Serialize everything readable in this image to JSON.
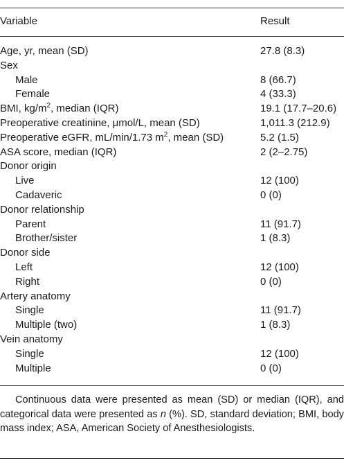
{
  "header": {
    "variable": "Variable",
    "result": "Result"
  },
  "rows": [
    {
      "label": "Age, yr, mean (SD)",
      "value": "27.8 (8.3)",
      "indent": false
    },
    {
      "label": "Sex",
      "value": "",
      "indent": false
    },
    {
      "label": "Male",
      "value": "8 (66.7)",
      "indent": true
    },
    {
      "label": "Female",
      "value": "4 (33.3)",
      "indent": true
    },
    {
      "label_pre": "BMI, kg/m",
      "label_sup": "2",
      "label_post": ", median (IQR)",
      "value": "19.1 (17.7–20.6)",
      "indent": false
    },
    {
      "label": "Preoperative creatinine, μmol/L, mean (SD)",
      "value": "1,011.3 (212.9)",
      "indent": false
    },
    {
      "label_pre": "Preoperative eGFR, mL/min/1.73 m",
      "label_sup": "2",
      "label_post": ", mean (SD)",
      "value": "5.2 (1.5)",
      "indent": false
    },
    {
      "label": "ASA score, median (IQR)",
      "value": "2 (2–2.75)",
      "indent": false
    },
    {
      "label": "Donor origin",
      "value": "",
      "indent": false
    },
    {
      "label": "Live",
      "value": "12 (100)",
      "indent": true
    },
    {
      "label": "Cadaveric",
      "value": "0 (0)",
      "indent": true
    },
    {
      "label": "Donor relationship",
      "value": "",
      "indent": false
    },
    {
      "label": "Parent",
      "value": "11 (91.7)",
      "indent": true
    },
    {
      "label": "Brother/sister",
      "value": "1 (8.3)",
      "indent": true
    },
    {
      "label": "Donor side",
      "value": "",
      "indent": false
    },
    {
      "label": "Left",
      "value": "12 (100)",
      "indent": true
    },
    {
      "label": "Right",
      "value": "0 (0)",
      "indent": true
    },
    {
      "label": "Artery anatomy",
      "value": "",
      "indent": false
    },
    {
      "label": "Single",
      "value": "11 (91.7)",
      "indent": true
    },
    {
      "label": "Multiple (two)",
      "value": "1 (8.3)",
      "indent": true
    },
    {
      "label": "Vein anatomy",
      "value": "",
      "indent": false
    },
    {
      "label": "Single",
      "value": "12 (100)",
      "indent": true
    },
    {
      "label": "Multiple",
      "value": "0 (0)",
      "indent": true
    }
  ],
  "footnote": {
    "part1": "Continuous data were presented as mean (SD) or median (IQR), and categorical data were presented as ",
    "italic": "n",
    "part2": " (%). SD, standard deviation; BMI, body mass index; ASA, American Society of Anesthesiologists."
  }
}
